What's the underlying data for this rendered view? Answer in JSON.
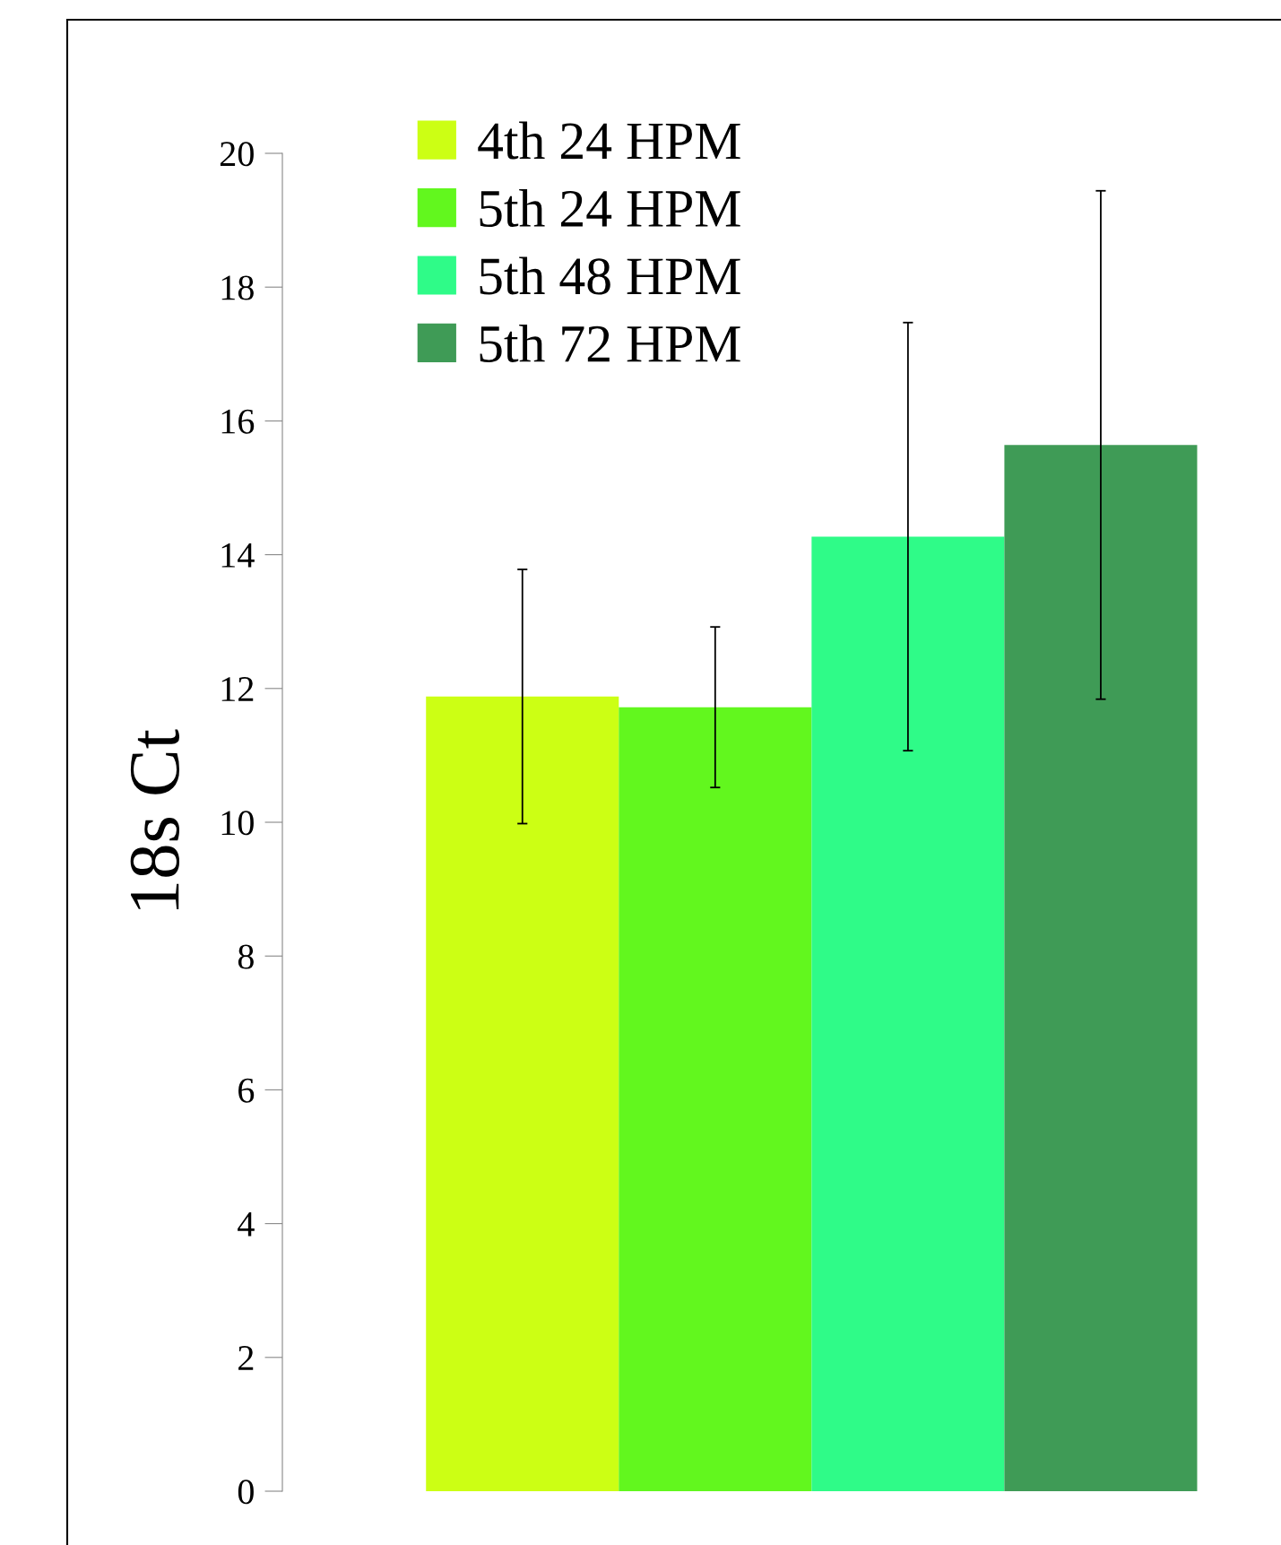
{
  "chart_data": {
    "type": "bar",
    "ylabel": "18s Ct",
    "categories": [
      null
    ],
    "ylim": [
      0,
      20
    ],
    "yticks": [
      0,
      2,
      4,
      6,
      8,
      10,
      12,
      14,
      16,
      18,
      20
    ],
    "grid": false,
    "legend": "top left",
    "tick_labels": "y",
    "series": [
      {
        "name": "4th 24 HPM",
        "color": "#ccff14",
        "values": [
          11.88
        ],
        "errors": [
          1.9
        ]
      },
      {
        "name": "5th 24 HPM",
        "color": "#62f71e",
        "values": [
          11.72
        ],
        "errors": [
          1.2
        ]
      },
      {
        "name": "5th 48 HPM",
        "color": "#2ffb88",
        "values": [
          14.27
        ],
        "errors": [
          3.2
        ]
      },
      {
        "name": "5th 72 HPM",
        "color": "#3f9b56",
        "values": [
          15.64
        ],
        "errors": [
          3.8
        ]
      }
    ]
  }
}
